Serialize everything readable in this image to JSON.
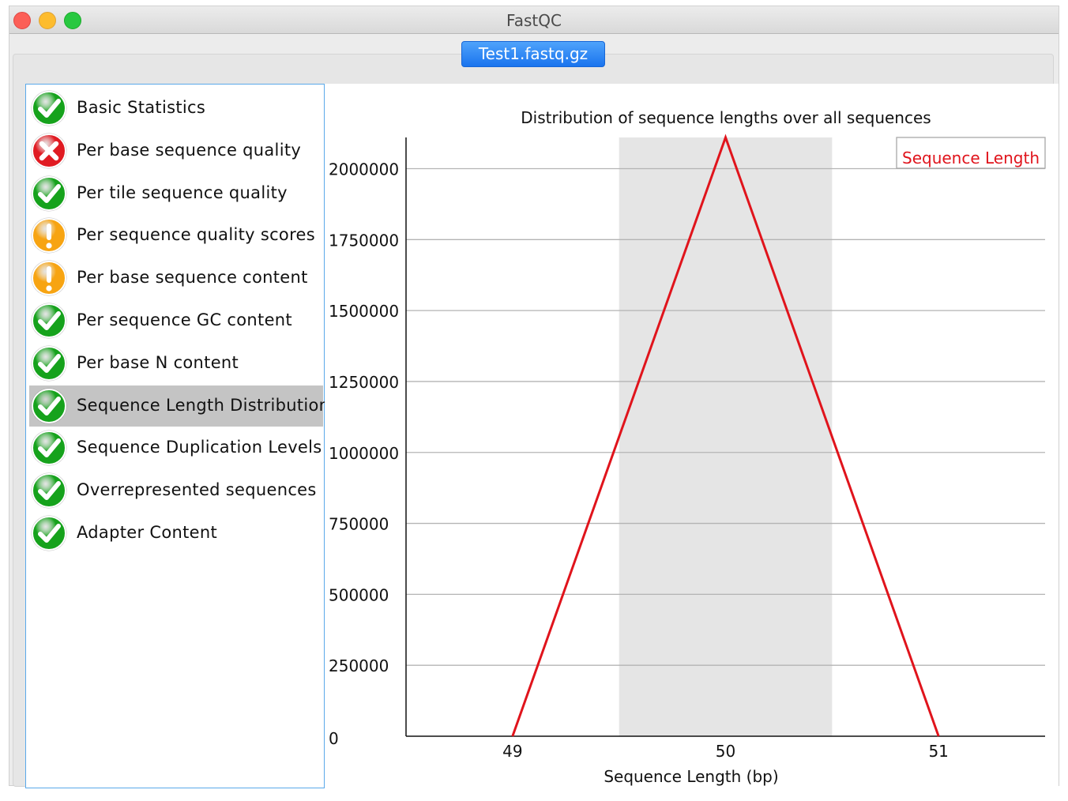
{
  "window": {
    "title": "FastQC"
  },
  "tab": {
    "label": "Test1.fastq.gz"
  },
  "modules": [
    {
      "label": "Basic Statistics",
      "status": "pass",
      "icon": "pass-check-icon"
    },
    {
      "label": "Per base sequence quality",
      "status": "fail",
      "icon": "fail-cross-icon"
    },
    {
      "label": "Per tile sequence quality",
      "status": "pass",
      "icon": "pass-check-icon"
    },
    {
      "label": "Per sequence quality scores",
      "status": "warn",
      "icon": "warn-exclamation-icon"
    },
    {
      "label": "Per base sequence content",
      "status": "warn",
      "icon": "warn-exclamation-icon"
    },
    {
      "label": "Per sequence GC content",
      "status": "pass",
      "icon": "pass-check-icon"
    },
    {
      "label": "Per base N content",
      "status": "pass",
      "icon": "pass-check-icon"
    },
    {
      "label": "Sequence Length Distribution",
      "status": "pass",
      "icon": "pass-check-icon",
      "selected": true
    },
    {
      "label": "Sequence Duplication Levels",
      "status": "pass",
      "icon": "pass-check-icon"
    },
    {
      "label": "Overrepresented sequences",
      "status": "pass",
      "icon": "pass-check-icon"
    },
    {
      "label": "Adapter Content",
      "status": "pass",
      "icon": "pass-check-icon"
    }
  ],
  "colors": {
    "pass": "#16a21c",
    "fail": "#e01b22",
    "warn": "#f7a412",
    "line": "#e0141c",
    "selected": "#c4c4c4",
    "accent": "#1a74ee"
  },
  "chart_data": {
    "type": "line",
    "title": "Distribution of sequence lengths over all sequences",
    "xlabel": "Sequence Length (bp)",
    "ylabel": "",
    "categories": [
      "49",
      "50",
      "51"
    ],
    "series": [
      {
        "name": "Sequence Length",
        "values": [
          0,
          2110000,
          0
        ],
        "color": "#e0141c"
      }
    ],
    "yticks": [
      0,
      250000,
      500000,
      750000,
      1000000,
      1250000,
      1500000,
      1750000,
      2000000
    ],
    "ylim": [
      0,
      2110000
    ],
    "highlighted_category": "50",
    "grid": true,
    "legend_position": "top-right"
  }
}
